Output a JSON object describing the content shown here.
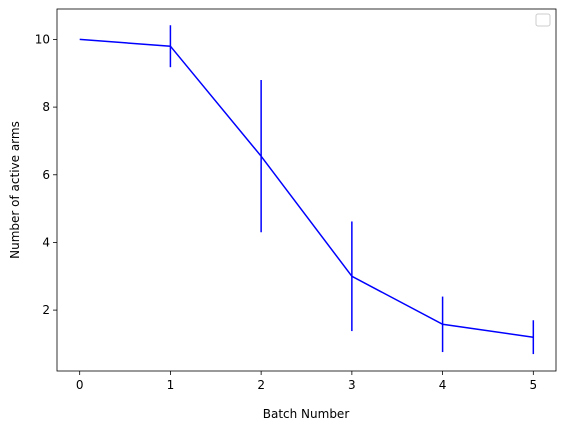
{
  "chart_data": {
    "type": "line",
    "title": "",
    "xlabel": "Batch Number",
    "ylabel": "Number of active arms",
    "xlim": [
      -0.25,
      5.25
    ],
    "ylim": [
      0.2,
      10.9
    ],
    "xticks": [
      0,
      1,
      2,
      3,
      4,
      5
    ],
    "yticks": [
      2,
      4,
      6,
      8,
      10
    ],
    "grid": false,
    "legend": {
      "placement": "top-right",
      "entries": []
    },
    "series": [
      {
        "color": "#0000ff",
        "x": [
          0,
          1,
          2,
          3,
          4,
          5
        ],
        "y": [
          10.0,
          9.8,
          6.55,
          3.0,
          1.58,
          1.2
        ],
        "yerr": [
          0.0,
          0.62,
          2.25,
          1.62,
          0.82,
          0.5
        ]
      }
    ]
  }
}
